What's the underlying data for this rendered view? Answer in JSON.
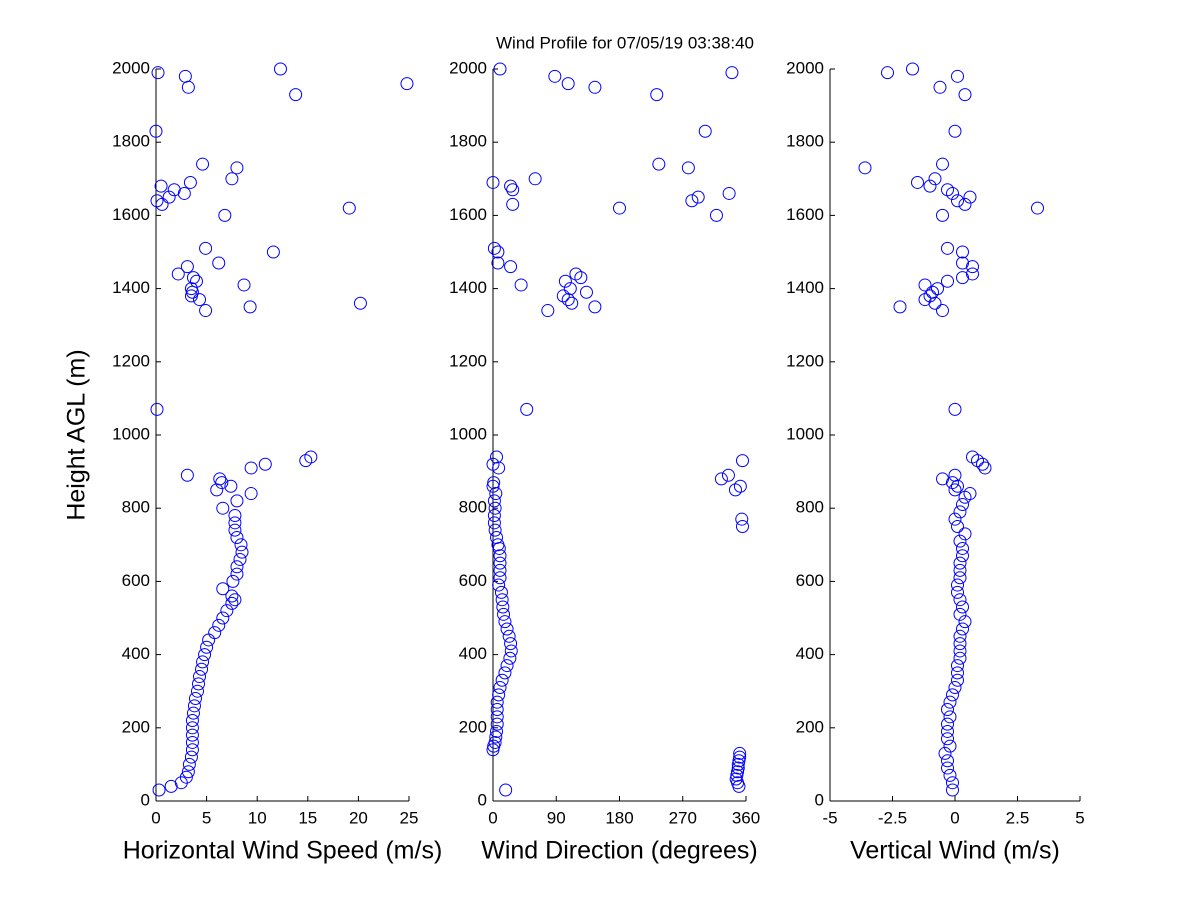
{
  "title": "Wind Profile for  07/05/19 03:38:40",
  "chart_data": [
    {
      "type": "scatter",
      "xlabel": "Horizontal Wind Speed (m/s)",
      "ylabel": "Height AGL (m)",
      "color": "#0000ff",
      "xlim": [
        0,
        25
      ],
      "xticks": [
        0,
        5,
        10,
        15,
        20,
        25
      ],
      "ylim": [
        0,
        2000
      ],
      "yticks": [
        0,
        200,
        400,
        600,
        800,
        1000,
        1200,
        1400,
        1600,
        1800,
        2000
      ],
      "x": [
        0.3,
        1.5,
        2.5,
        3,
        3.2,
        3.3,
        3.5,
        3.6,
        3.6,
        3.6,
        3.6,
        3.6,
        3.7,
        3.8,
        3.9,
        4.1,
        4.2,
        4.3,
        4.5,
        4.6,
        4.8,
        5,
        5.2,
        5.8,
        6.2,
        6.6,
        7,
        7.5,
        7.8,
        7.5,
        6.6,
        7.6,
        8,
        8,
        8.3,
        8.5,
        8.4,
        8,
        7.8,
        7.8,
        7.8,
        6.6,
        8,
        9.4,
        6,
        7.4,
        6.5,
        6.3,
        3.1,
        9.4,
        10.8,
        14.8,
        15.3,
        0.1,
        4.9,
        9.3,
        20.2,
        4.3,
        3.5,
        3.6,
        3.5,
        8.7,
        4,
        3.7,
        2.2,
        3.1,
        6.2,
        11.6,
        4.9,
        6.8,
        19.1,
        0.6,
        0.1,
        1.3,
        2.8,
        1.8,
        0.5,
        3.4,
        7.5,
        8,
        4.6,
        0,
        13.8,
        3.2,
        24.8,
        2.9,
        0.2,
        12.3
      ],
      "values": [
        30,
        40,
        50,
        65,
        80,
        100,
        120,
        140,
        160,
        180,
        200,
        220,
        240,
        260,
        280,
        300,
        320,
        340,
        360,
        380,
        400,
        420,
        440,
        460,
        480,
        500,
        520,
        540,
        550,
        560,
        580,
        600,
        620,
        640,
        660,
        680,
        700,
        720,
        740,
        760,
        780,
        800,
        820,
        840,
        850,
        860,
        870,
        880,
        890,
        910,
        920,
        930,
        940,
        1070,
        1340,
        1350,
        1360,
        1370,
        1380,
        1390,
        1400,
        1410,
        1420,
        1430,
        1440,
        1460,
        1470,
        1500,
        1510,
        1600,
        1620,
        1630,
        1640,
        1650,
        1660,
        1670,
        1680,
        1690,
        1700,
        1730,
        1740,
        1830,
        1930,
        1950,
        1960,
        1980,
        1990,
        2000
      ]
    },
    {
      "type": "scatter",
      "xlabel": "Wind Direction (degrees)",
      "color": "#0000ff",
      "xlim": [
        0,
        360
      ],
      "xticks": [
        0,
        90,
        180,
        270,
        360
      ],
      "ylim": [
        0,
        2000
      ],
      "yticks": [
        0,
        200,
        400,
        600,
        800,
        1000,
        1200,
        1400,
        1600,
        1800,
        2000
      ],
      "x": [
        18,
        350,
        348,
        346,
        347,
        348,
        349,
        349,
        350,
        351,
        351,
        0,
        1,
        3,
        4,
        5,
        6,
        6,
        6,
        6,
        8,
        10,
        13,
        17,
        20,
        24,
        26,
        25,
        23,
        20,
        17,
        15,
        14,
        13,
        12,
        8,
        10,
        10,
        10,
        10,
        9,
        7,
        5,
        3,
        355,
        2,
        354,
        2,
        3,
        2,
        4,
        345,
        0,
        352,
        1,
        325,
        335,
        8,
        0,
        355,
        5,
        48,
        78,
        145,
        112,
        107,
        100,
        133,
        110,
        40,
        103,
        125,
        118,
        25,
        7,
        7,
        2,
        318,
        180,
        28,
        283,
        292,
        336,
        28,
        25,
        0,
        60,
        278,
        236,
        302,
        233,
        145,
        107,
        88,
        340,
        10
      ],
      "values": [
        30,
        40,
        50,
        60,
        70,
        80,
        90,
        100,
        110,
        120,
        130,
        140,
        150,
        160,
        175,
        190,
        210,
        230,
        250,
        270,
        290,
        310,
        330,
        350,
        370,
        390,
        410,
        430,
        450,
        470,
        490,
        510,
        530,
        550,
        570,
        590,
        610,
        630,
        650,
        670,
        690,
        700,
        720,
        740,
        750,
        760,
        770,
        780,
        800,
        820,
        840,
        850,
        860,
        860,
        870,
        880,
        890,
        910,
        920,
        930,
        940,
        1070,
        1340,
        1350,
        1360,
        1370,
        1380,
        1390,
        1400,
        1410,
        1420,
        1430,
        1440,
        1460,
        1470,
        1500,
        1510,
        1600,
        1620,
        1630,
        1640,
        1650,
        1660,
        1670,
        1680,
        1690,
        1700,
        1730,
        1740,
        1830,
        1930,
        1950,
        1960,
        1980,
        1990,
        2000
      ]
    },
    {
      "type": "scatter",
      "xlabel": "Vertical Wind (m/s)",
      "color": "#0000ff",
      "xlim": [
        -5,
        5
      ],
      "xticks": [
        -5,
        -2.5,
        0,
        2.5,
        5
      ],
      "ylim": [
        0,
        2000
      ],
      "yticks": [
        0,
        200,
        400,
        600,
        800,
        1000,
        1200,
        1400,
        1600,
        1800,
        2000
      ],
      "x": [
        -0.1,
        -0.1,
        -0.2,
        -0.3,
        -0.3,
        -0.4,
        -0.2,
        -0.3,
        -0.3,
        -0.3,
        -0.2,
        -0.3,
        -0.2,
        -0.1,
        0,
        0.1,
        0.1,
        0.1,
        0.2,
        0.2,
        0.2,
        0.2,
        0.3,
        0.4,
        0.2,
        0.3,
        0.2,
        0.1,
        0.1,
        0.2,
        0.2,
        0.2,
        0.3,
        0.3,
        0.2,
        0.4,
        0.1,
        0,
        0.2,
        0.3,
        0.4,
        0.6,
        0,
        0.1,
        -0.1,
        -0.5,
        0,
        1.2,
        1.1,
        0.9,
        0.7,
        0,
        -0.5,
        -2.2,
        -0.8,
        -1.2,
        -1,
        -0.9,
        -0.7,
        -1.2,
        -0.3,
        0.3,
        0.7,
        0.7,
        0.3,
        0.3,
        -0.3,
        -0.5,
        3.3,
        0.4,
        0.1,
        0.6,
        -0.1,
        -0.3,
        -1,
        -1.5,
        -0.8,
        -3.6,
        -0.5,
        0,
        0.4,
        -0.6,
        0.1,
        -2.7,
        -1.7
      ],
      "values": [
        30,
        50,
        70,
        90,
        110,
        130,
        150,
        170,
        190,
        210,
        230,
        250,
        270,
        290,
        310,
        330,
        350,
        370,
        390,
        410,
        430,
        450,
        470,
        490,
        510,
        530,
        550,
        570,
        590,
        610,
        630,
        650,
        670,
        690,
        710,
        730,
        750,
        770,
        790,
        810,
        830,
        840,
        850,
        860,
        870,
        880,
        890,
        910,
        920,
        930,
        940,
        1070,
        1340,
        1350,
        1360,
        1370,
        1380,
        1390,
        1400,
        1410,
        1420,
        1430,
        1440,
        1460,
        1470,
        1500,
        1510,
        1600,
        1620,
        1630,
        1640,
        1650,
        1660,
        1670,
        1680,
        1690,
        1700,
        1730,
        1740,
        1830,
        1930,
        1950,
        1980,
        1990,
        2000
      ]
    }
  ]
}
